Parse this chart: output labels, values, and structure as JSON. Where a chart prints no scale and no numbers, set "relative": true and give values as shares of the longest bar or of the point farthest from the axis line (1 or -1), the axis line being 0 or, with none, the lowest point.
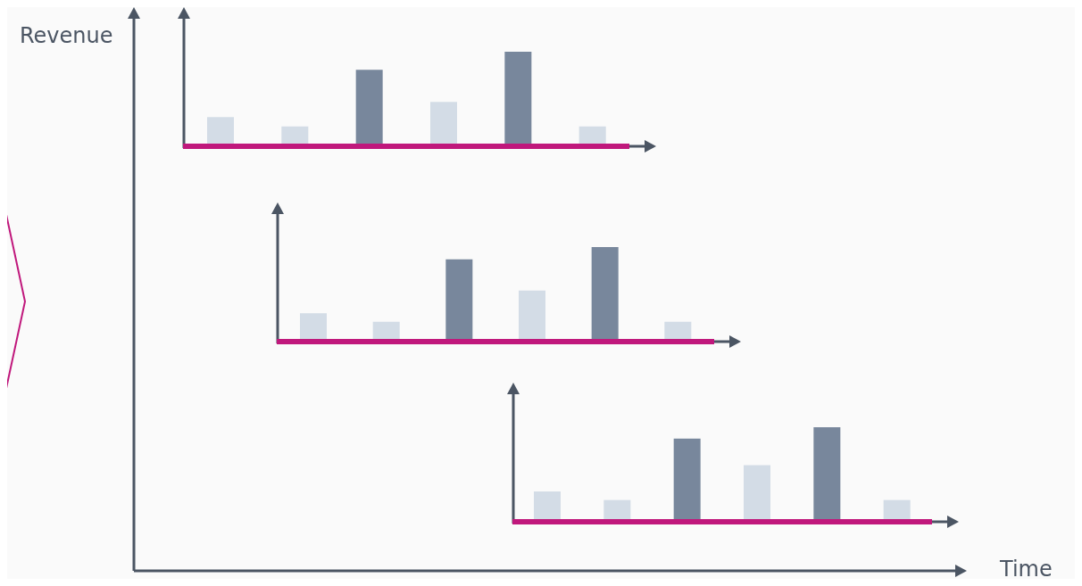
{
  "chart_data": [
    {
      "type": "bar",
      "relative": true,
      "ylabel": "Revenue",
      "categories": [
        null,
        null,
        null,
        null,
        null,
        null
      ],
      "values": [
        0.31,
        0.21,
        0.81,
        0.47,
        1,
        0.21
      ],
      "colors": [
        "#d3dce6",
        "#d3dce6",
        "#78879c",
        "#d3dce6",
        "#78879c",
        "#d3dce6"
      ]
    },
    {
      "type": "bar",
      "relative": true,
      "categories": [
        null,
        null,
        null,
        null,
        null,
        null
      ],
      "values": [
        0.3,
        0.21,
        0.87,
        0.54,
        1,
        0.21
      ],
      "colors": [
        "#d3dce6",
        "#d3dce6",
        "#78879c",
        "#d3dce6",
        "#78879c",
        "#d3dce6"
      ]
    },
    {
      "type": "bar",
      "relative": true,
      "xlabel": "Time",
      "categories": [
        null,
        null,
        null,
        null,
        null,
        null
      ],
      "values": [
        0.32,
        0.23,
        0.88,
        0.6,
        1,
        0.23
      ],
      "colors": [
        "#d3dce6",
        "#d3dce6",
        "#78879c",
        "#d3dce6",
        "#78879c",
        "#d3dce6"
      ]
    }
  ]
}
